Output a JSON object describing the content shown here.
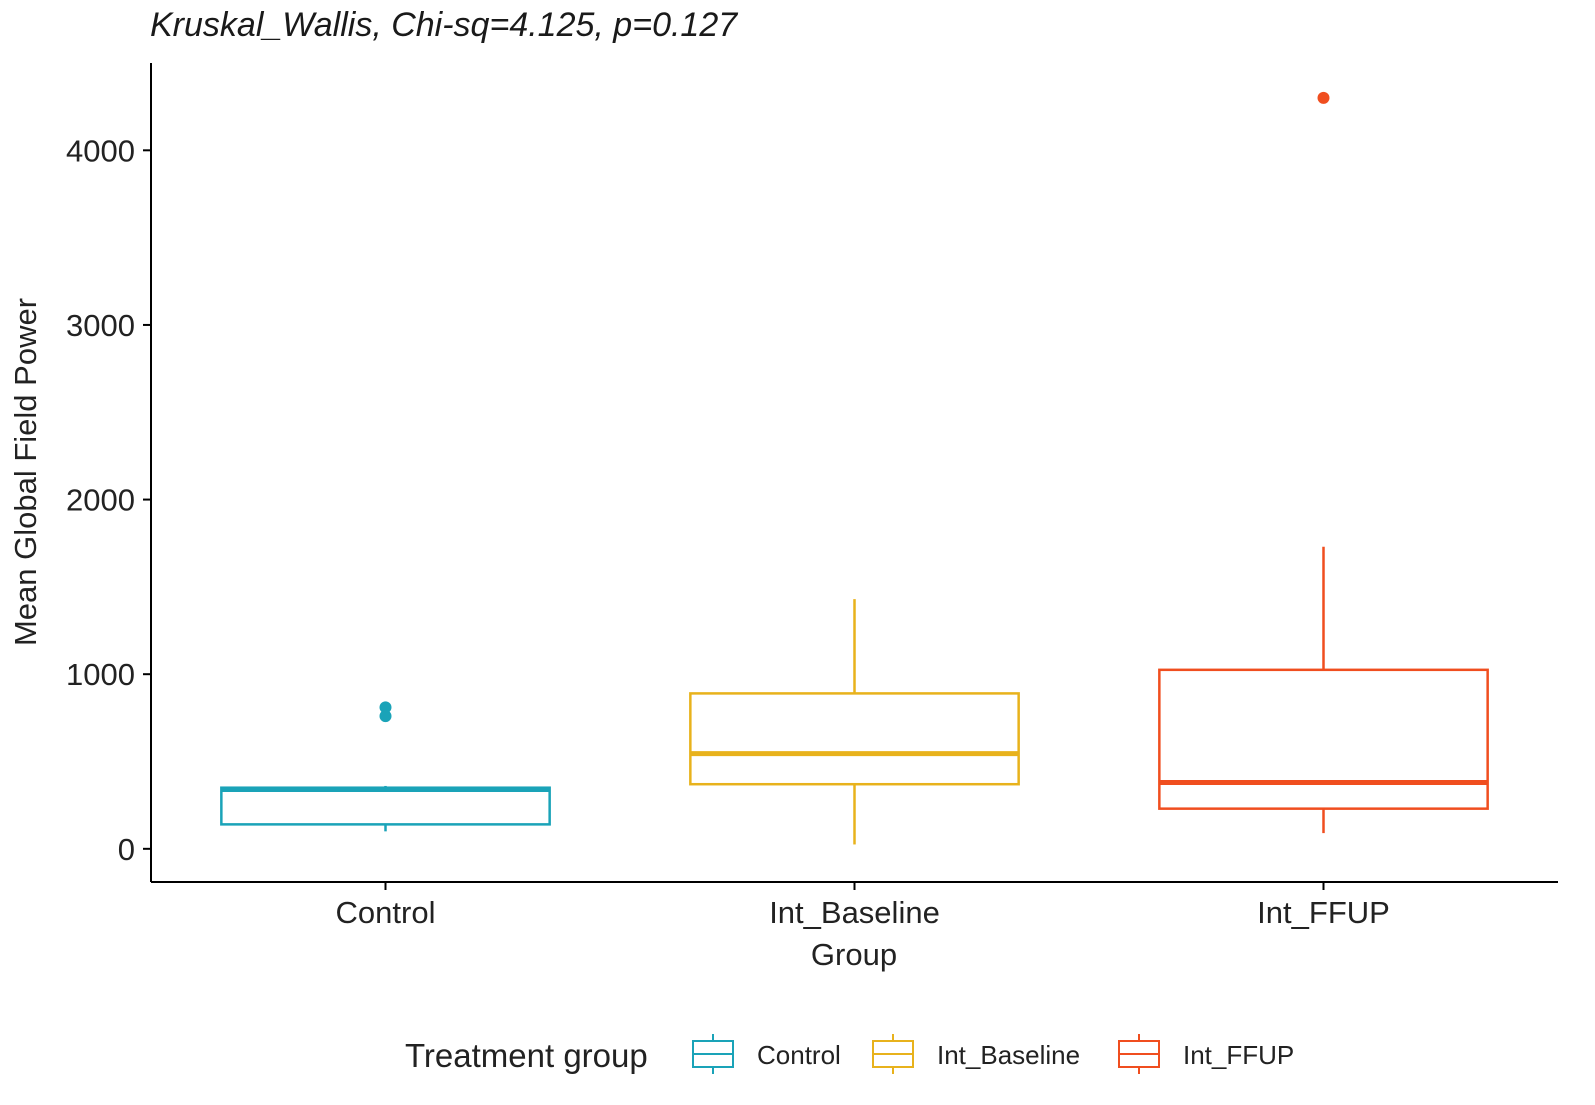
{
  "chart_data": {
    "type": "boxplot",
    "title": "Kruskal_Wallis, Chi-sq=4.125, p=0.127",
    "xlabel": "Group",
    "ylabel": "Mean Global Field Power",
    "categories": [
      "Control",
      "Int_Baseline",
      "Int_FFUP"
    ],
    "ylim": [
      -190,
      4500
    ],
    "yticks": [
      0,
      1000,
      2000,
      3000,
      4000
    ],
    "ytick_labels": [
      "0",
      "1000",
      "2000",
      "3000",
      "4000"
    ],
    "grid": false,
    "series": [
      {
        "name": "Control",
        "color": "#1aa3b8",
        "min": 100,
        "q1": 140,
        "median": 340,
        "q3": 350,
        "max": 360,
        "outliers": [
          760,
          810
        ]
      },
      {
        "name": "Int_Baseline",
        "color": "#e8b21c",
        "min": 25,
        "q1": 370,
        "median": 545,
        "q3": 890,
        "max": 1430,
        "outliers": []
      },
      {
        "name": "Int_FFUP",
        "color": "#f04e1f",
        "min": 90,
        "q1": 230,
        "median": 380,
        "q3": 1025,
        "max": 1730,
        "outliers": [
          4300
        ]
      }
    ],
    "legend": {
      "title": "Treatment group",
      "position": "bottom",
      "entries": [
        "Control",
        "Int_Baseline",
        "Int_FFUP"
      ]
    }
  }
}
